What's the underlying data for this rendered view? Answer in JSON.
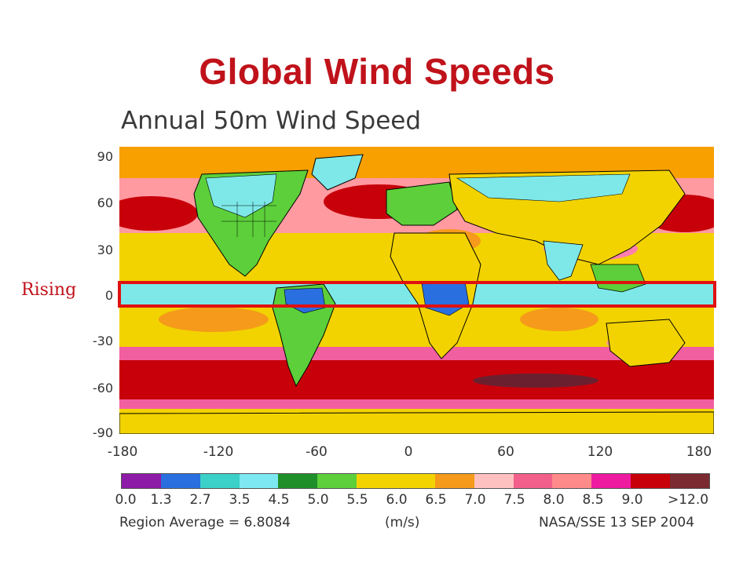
{
  "slide_title": "Global Wind Speeds",
  "map": {
    "title": "Annual 50m Wind Speed",
    "lat_ticks": [
      "90",
      "60",
      "30",
      "0",
      "-30",
      "-60",
      "-90"
    ],
    "lon_ticks": [
      "-180",
      "-120",
      "-60",
      "0",
      "60",
      "120",
      "180"
    ],
    "highlight_label": "Rising",
    "colors": {
      "polar": "#f7a000",
      "midlat_ocean": "#c8000a",
      "southern_max": "#6b2030",
      "tropical": "#7ee8e8",
      "land_low": "#2a6fe0",
      "land_mid": "#5ccf3a",
      "subtropic": "#f2d300",
      "pink": "#f25fa0",
      "salmon": "#ff9a8a",
      "highlight": "#e01010"
    }
  },
  "legend": {
    "colors": [
      "#8e1aa8",
      "#2a6fe0",
      "#3bd0c8",
      "#7ee8f2",
      "#1f8f2a",
      "#5ccf3a",
      "#f2d300",
      "#f2d300",
      "#f59a1a",
      "#ffc0c0",
      "#f25f8a",
      "#ff8a8a",
      "#ee1aa0",
      "#c8000a",
      "#7a2a30"
    ],
    "labels": [
      "0.0",
      "1.3",
      "2.7",
      "3.5",
      "4.5",
      "5.0",
      "5.5",
      "6.0",
      "6.5",
      "7.0",
      "7.5",
      "8.0",
      "8.5",
      "9.0",
      ">12.0"
    ],
    "region_average": "Region Average = 6.8084",
    "units": "(m/s)",
    "source": "NASA/SSE 13 SEP 2004"
  }
}
